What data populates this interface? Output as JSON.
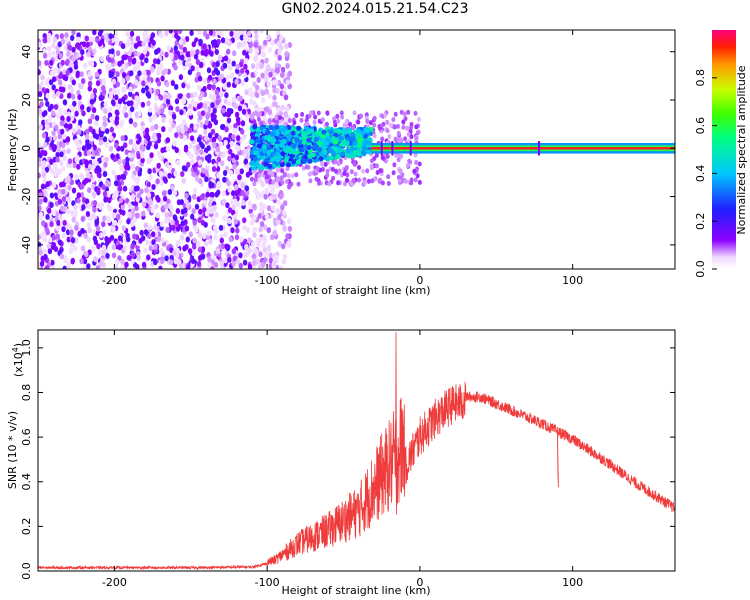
{
  "title": "GN02.2024.015.21.54.C23",
  "chart_data": [
    {
      "type": "heatmap",
      "xlabel": "Height of straight line (km)",
      "ylabel": "Frequency (Hz)",
      "xlim": [
        -250,
        167
      ],
      "ylim": [
        -50,
        49
      ],
      "xticks": [
        "-200",
        "-100",
        "0",
        "100"
      ],
      "xtick_values": [
        -200,
        -100,
        0,
        100
      ],
      "yticks": [
        "-40",
        "-20",
        "0",
        "20",
        "40"
      ],
      "ytick_values": [
        -40,
        -20,
        0,
        20,
        40
      ],
      "colorbar": {
        "label": "Normalized spectral amplitude",
        "ticks": [
          "0.0",
          "0.2",
          "0.4",
          "0.6",
          "0.8"
        ],
        "tick_values": [
          0.0,
          0.2,
          0.4,
          0.6,
          0.8
        ],
        "range": [
          0,
          1
        ]
      },
      "features": {
        "noise_region_km": [
          -250,
          -85
        ],
        "noise_amplitude": 0.15,
        "transition_region_km": [
          -110,
          -32
        ],
        "transition_amplitude": 0.3,
        "signal_line_km": [
          -32,
          167
        ],
        "signal_frequency_hz": 0,
        "signal_amplitude": 0.95
      }
    },
    {
      "type": "line",
      "xlabel": "Height of straight line (km)",
      "ylabel": "SNR (10 * v/v)",
      "yscale_label": "(x10",
      "yscale_exponent": "4",
      "xlim": [
        -250,
        167
      ],
      "ylim": [
        0,
        1.08
      ],
      "xticks": [
        "-200",
        "-100",
        "0",
        "100"
      ],
      "xtick_values": [
        -200,
        -100,
        0,
        100
      ],
      "yticks": [
        "0.0",
        "0.2",
        "0.4",
        "0.6",
        "0.8",
        "1.0"
      ],
      "ytick_values": [
        0.0,
        0.2,
        0.4,
        0.6,
        0.8,
        1.0
      ],
      "color": "#ef3b3b",
      "envelope": {
        "x": [
          -250,
          -150,
          -110,
          -95,
          -80,
          -60,
          -40,
          -25,
          -18,
          -10,
          0,
          10,
          20,
          30,
          40,
          60,
          80,
          100,
          120,
          140,
          167
        ],
        "y": [
          0.015,
          0.015,
          0.018,
          0.04,
          0.1,
          0.15,
          0.22,
          0.35,
          0.4,
          0.48,
          0.62,
          0.7,
          0.76,
          0.78,
          0.78,
          0.72,
          0.66,
          0.59,
          0.5,
          0.4,
          0.28
        ]
      },
      "spikes": [
        {
          "x": -16,
          "y": 1.07
        },
        {
          "x": 90,
          "y": 0.43
        }
      ]
    }
  ]
}
